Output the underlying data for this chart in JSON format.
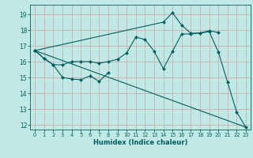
{
  "title": "",
  "xlabel": "Humidex (Indice chaleur)",
  "bg_color": "#c0e8e4",
  "grid_color": "#d4a0a0",
  "line_color": "#006060",
  "xlim": [
    -0.5,
    23.5
  ],
  "ylim": [
    11.7,
    19.6
  ],
  "yticks": [
    12,
    13,
    14,
    15,
    16,
    17,
    18,
    19
  ],
  "xticks": [
    0,
    1,
    2,
    3,
    4,
    5,
    6,
    7,
    8,
    9,
    10,
    11,
    12,
    13,
    14,
    15,
    16,
    17,
    18,
    19,
    20,
    21,
    22,
    23
  ],
  "series": [
    {
      "x": [
        0,
        1,
        2,
        3,
        4,
        5,
        6,
        7,
        8
      ],
      "y": [
        16.7,
        16.2,
        15.8,
        15.0,
        14.9,
        14.85,
        15.1,
        14.75,
        15.3
      ],
      "marker": "D",
      "markersize": 2.0,
      "lw": 0.8
    },
    {
      "x": [
        0,
        1,
        2,
        3,
        4,
        5,
        6,
        7,
        8,
        9,
        10,
        11,
        12,
        13,
        14,
        15,
        16,
        17,
        18,
        19,
        20
      ],
      "y": [
        16.7,
        16.2,
        15.8,
        15.8,
        16.0,
        16.0,
        16.0,
        15.9,
        16.0,
        16.15,
        16.55,
        17.55,
        17.4,
        16.65,
        15.55,
        16.65,
        17.75,
        17.75,
        17.82,
        17.95,
        17.85
      ],
      "marker": "D",
      "markersize": 2.0,
      "lw": 0.8
    },
    {
      "x": [
        0,
        14,
        15,
        16,
        17,
        18,
        19,
        20,
        21,
        22,
        23
      ],
      "y": [
        16.7,
        18.5,
        19.1,
        18.3,
        17.8,
        17.8,
        17.9,
        16.6,
        14.7,
        12.8,
        11.85
      ],
      "marker": "D",
      "markersize": 2.0,
      "lw": 0.8
    },
    {
      "x": [
        0,
        23
      ],
      "y": [
        16.7,
        11.85
      ],
      "marker": null,
      "markersize": 0,
      "lw": 0.8
    }
  ]
}
